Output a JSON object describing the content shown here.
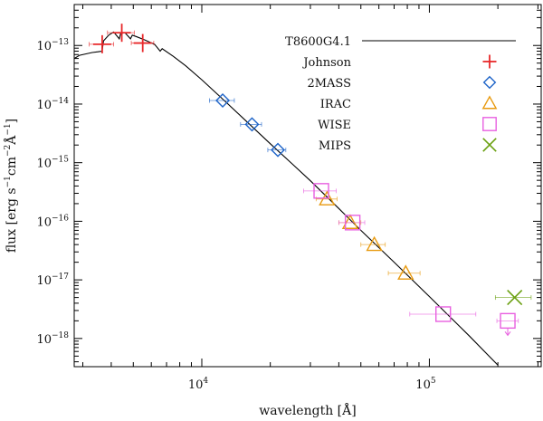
{
  "chart_data": {
    "type": "scatter",
    "title": "",
    "xlabel": "wavelength [Å]",
    "ylabel_parts": [
      "flux [erg s",
      "−1",
      "cm",
      "−2",
      "Å",
      "−1",
      "]"
    ],
    "xscale": "log",
    "yscale": "log",
    "xlim": [
      2750,
      310000
    ],
    "ylim": [
      3.3e-19,
      5e-13
    ],
    "x_ticks": [
      {
        "value": 10000,
        "base": "10",
        "exp": "4"
      },
      {
        "value": 100000,
        "base": "10",
        "exp": "5"
      }
    ],
    "y_ticks": [
      {
        "value": 1e-13,
        "base": "10",
        "exp": "−13"
      },
      {
        "value": 1e-14,
        "base": "10",
        "exp": "−14"
      },
      {
        "value": 1e-15,
        "base": "10",
        "exp": "−15"
      },
      {
        "value": 1e-16,
        "base": "10",
        "exp": "−16"
      },
      {
        "value": 1e-17,
        "base": "10",
        "exp": "−17"
      },
      {
        "value": 1e-18,
        "base": "10",
        "exp": "−18"
      }
    ],
    "model": {
      "name": "T8600G4.1",
      "color": "#000000",
      "points": [
        [
          2750,
          6e-14
        ],
        [
          2900,
          6.8e-14
        ],
        [
          3100,
          7.2e-14
        ],
        [
          3300,
          7.6e-14
        ],
        [
          3500,
          7.8e-14
        ],
        [
          3645,
          8e-14
        ],
        [
          3700,
          1.2e-13
        ],
        [
          3900,
          1.5e-13
        ],
        [
          4100,
          1.7e-13
        ],
        [
          4340,
          1.3e-13
        ],
        [
          4400,
          1.6e-13
        ],
        [
          4600,
          1.65e-13
        ],
        [
          4861,
          1.3e-13
        ],
        [
          4950,
          1.5e-13
        ],
        [
          5200,
          1.4e-13
        ],
        [
          5600,
          1.25e-13
        ],
        [
          6200,
          1.05e-13
        ],
        [
          6563,
          8e-14
        ],
        [
          6700,
          8.8e-14
        ],
        [
          7500,
          6.5e-14
        ],
        [
          8500,
          4.5e-14
        ],
        [
          10000,
          2.6e-14
        ],
        [
          12000,
          1.35e-14
        ],
        [
          15000,
          6e-15
        ],
        [
          20000,
          2.1e-15
        ],
        [
          25000,
          9.5e-16
        ],
        [
          30000,
          4.9e-16
        ],
        [
          40000,
          1.65e-16
        ],
        [
          50000,
          7e-17
        ],
        [
          70000,
          2e-17
        ],
        [
          100000,
          5.2e-18
        ],
        [
          150000,
          1.1e-18
        ],
        [
          200000,
          3.5e-19
        ]
      ]
    },
    "series": [
      {
        "name": "Johnson",
        "marker": "plus",
        "color": "#e8282a",
        "points": [
          {
            "x": 3650,
            "y": 1.05e-13,
            "xerr": [
              3200,
              4100
            ]
          },
          {
            "x": 4450,
            "y": 1.65e-13,
            "xerr": [
              3850,
              5050
            ],
            "yerr": [
              1.3e-13,
              2e-13
            ]
          },
          {
            "x": 5500,
            "y": 1.1e-13,
            "xerr": [
              4900,
              6150
            ]
          }
        ]
      },
      {
        "name": "2MASS",
        "marker": "diamond",
        "color": "#1e64c8",
        "points": [
          {
            "x": 12350,
            "y": 1.15e-14,
            "xerr": [
              10800,
              13900
            ]
          },
          {
            "x": 16620,
            "y": 4.5e-15,
            "xerr": [
              14800,
              18300
            ]
          },
          {
            "x": 21590,
            "y": 1.65e-15,
            "xerr": [
              19500,
              23400
            ]
          }
        ]
      },
      {
        "name": "IRAC",
        "marker": "triangle",
        "color": "#e89a10",
        "points": [
          {
            "x": 35500,
            "y": 2.4e-16,
            "xerr": [
              31800,
              39300
            ]
          },
          {
            "x": 44900,
            "y": 9.5e-17,
            "xerr": [
              40000,
              50000
            ]
          },
          {
            "x": 57300,
            "y": 4e-17,
            "xerr": [
              50000,
              64000
            ]
          },
          {
            "x": 78700,
            "y": 1.3e-17,
            "xerr": [
              66000,
              91000
            ]
          }
        ]
      },
      {
        "name": "WISE",
        "marker": "square",
        "color": "#e860e0",
        "points": [
          {
            "x": 33500,
            "y": 3.3e-16,
            "xerr": [
              28000,
              39000
            ]
          },
          {
            "x": 46000,
            "y": 9.5e-17,
            "xerr": [
              40000,
              52000
            ]
          },
          {
            "x": 115000,
            "y": 2.6e-18,
            "xerr": [
              82000,
              160000
            ]
          },
          {
            "x": 221000,
            "y": 2e-18,
            "xerr": [
              198000,
              246000
            ],
            "upper_limit": true
          }
        ]
      },
      {
        "name": "MIPS",
        "marker": "cross",
        "color": "#6aa010",
        "points": [
          {
            "x": 237000,
            "y": 5e-18,
            "xerr": [
              195000,
              280000
            ]
          }
        ]
      }
    ],
    "legend_position": "top-right",
    "grid": false
  }
}
